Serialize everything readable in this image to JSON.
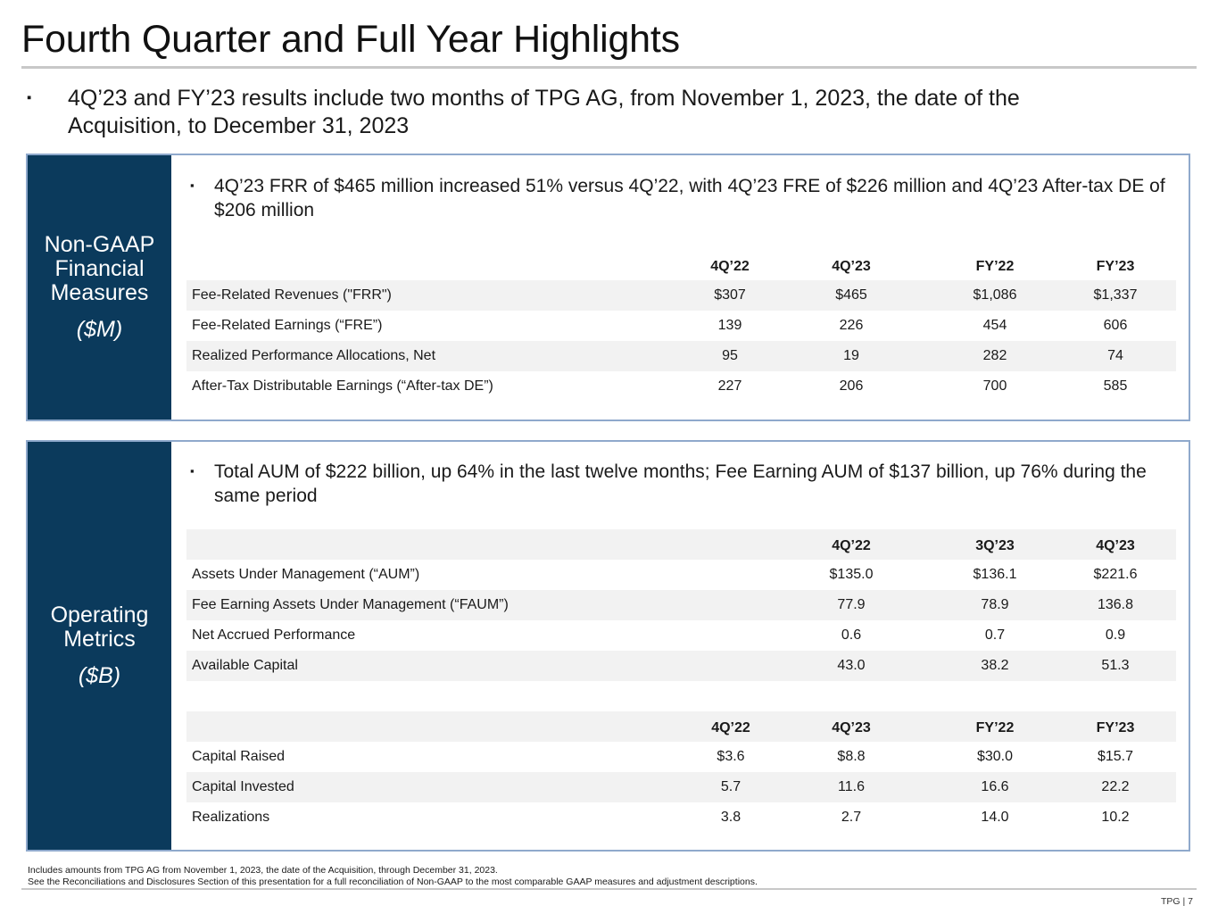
{
  "title": "Fourth Quarter and Full Year Highlights",
  "intro_bullet": "4Q’23 and FY’23 results include two months of TPG AG, from November 1, 2023, the date of the Acquisition, to December 31, 2023",
  "bullet_mark": "▪",
  "financial": {
    "side_heading": "Non-GAAP Financial Measures",
    "side_unit": "($M)",
    "bullet": "4Q’23 FRR of $465 million increased 51% versus 4Q’22, with 4Q’23 FRE of $226 million and 4Q’23 After-tax DE of $206 million",
    "headers": [
      "4Q’22",
      "4Q’23",
      "FY’22",
      "FY’23"
    ],
    "rows": [
      {
        "label": "Fee-Related Revenues (\"FRR\")",
        "values": [
          "$307",
          "$465",
          "$1,086",
          "$1,337"
        ]
      },
      {
        "label": "Fee-Related Earnings (“FRE”)",
        "values": [
          "139",
          "226",
          "454",
          "606"
        ]
      },
      {
        "label": "Realized Performance Allocations, Net",
        "values": [
          "95",
          "19",
          "282",
          "74"
        ]
      },
      {
        "label": "After-Tax Distributable Earnings (“After-tax DE”)",
        "values": [
          "227",
          "206",
          "700",
          "585"
        ]
      }
    ]
  },
  "operating": {
    "side_heading": "Operating Metrics",
    "side_unit": "($B)",
    "bullet": "Total AUM of $222 billion, up 64% in the last twelve months; Fee Earning AUM of $137 billion, up 76% during the same period",
    "aum_headers": [
      "4Q’22",
      "3Q’23",
      "4Q’23"
    ],
    "aum_rows": [
      {
        "label": "Assets Under Management (“AUM”)",
        "values": [
          "$135.0",
          "$136.1",
          "$221.6"
        ]
      },
      {
        "label": "Fee Earning Assets Under Management (“FAUM”)",
        "values": [
          "77.9",
          "78.9",
          "136.8"
        ]
      },
      {
        "label": "Net Accrued Performance",
        "values": [
          "0.6",
          "0.7",
          "0.9"
        ]
      },
      {
        "label": "Available Capital",
        "values": [
          "43.0",
          "38.2",
          "51.3"
        ]
      }
    ],
    "capital_headers": [
      "4Q’22",
      "4Q’23",
      "FY’22",
      "FY’23"
    ],
    "capital_rows": [
      {
        "label": "Capital Raised",
        "values": [
          "$3.6",
          "$8.8",
          "$30.0",
          "$15.7"
        ]
      },
      {
        "label": "Capital Invested",
        "values": [
          "5.7",
          "11.6",
          "16.6",
          "22.2"
        ]
      },
      {
        "label": "Realizations",
        "values": [
          "3.8",
          "2.7",
          "14.0",
          "10.2"
        ]
      }
    ]
  },
  "footnotes": [
    "Includes amounts from TPG AG from November 1, 2023, the date of the Acquisition, through December 31, 2023.",
    "See the Reconciliations and Disclosures Section of this presentation for a full reconciliation of Non-GAAP to the most comparable GAAP measures and adjustment descriptions."
  ],
  "page_number": "TPG | 7"
}
